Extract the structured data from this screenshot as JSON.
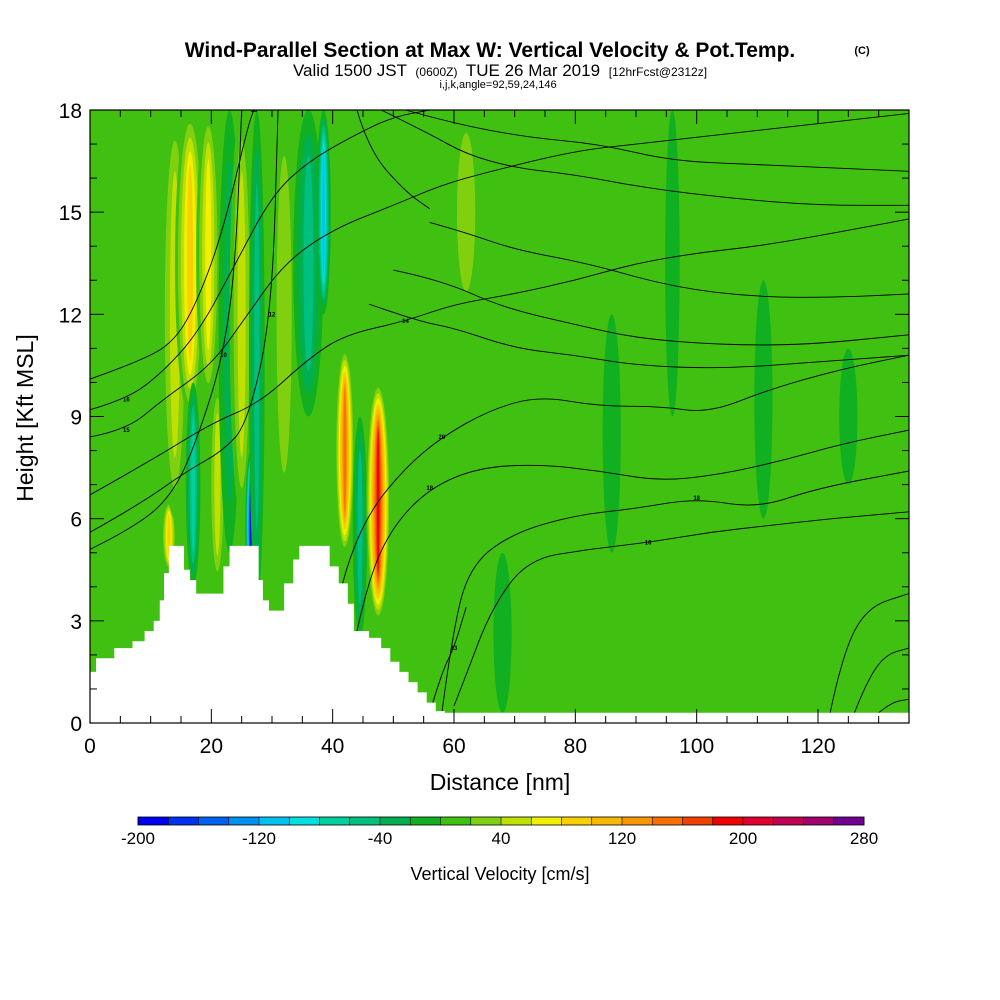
{
  "header": {
    "title": "Wind-Parallel Section at Max W: Vertical Velocity & Pot.Temp.",
    "title_mark": "(C)",
    "valid_prefix": "Valid 1500 JST",
    "valid_zulu": "(0600Z)",
    "valid_date": "TUE 26 Mar 2019",
    "forecast": "[12hrFcst@2312z]",
    "indices": "i,j,k,angle=92,59,24,146"
  },
  "chart_data": {
    "type": "heatmap",
    "xlabel": "Distance [nm]",
    "ylabel": "Height [Kft MSL]",
    "xlim": [
      0,
      135
    ],
    "ylim": [
      0,
      18
    ],
    "x_ticks": [
      0,
      20,
      40,
      60,
      80,
      100,
      120
    ],
    "x_tick_labels": [
      "0",
      "20",
      "40",
      "60",
      "80",
      "100",
      "120"
    ],
    "y_ticks": [
      0,
      3,
      6,
      9,
      12,
      15,
      18
    ],
    "y_tick_labels": [
      "0",
      "3",
      "6",
      "9",
      "12",
      "15",
      "18"
    ],
    "background_value": 0,
    "terrain": [
      {
        "x": 0,
        "h": 1.5
      },
      {
        "x": 1,
        "h": 1.9
      },
      {
        "x": 4,
        "h": 2.2
      },
      {
        "x": 7,
        "h": 2.4
      },
      {
        "x": 9,
        "h": 2.7
      },
      {
        "x": 10.5,
        "h": 3.0
      },
      {
        "x": 11.5,
        "h": 3.6
      },
      {
        "x": 12.2,
        "h": 4.4
      },
      {
        "x": 13,
        "h": 5.2
      },
      {
        "x": 15,
        "h": 5.2
      },
      {
        "x": 15.5,
        "h": 4.5
      },
      {
        "x": 16.5,
        "h": 4.2
      },
      {
        "x": 17.5,
        "h": 3.8
      },
      {
        "x": 21,
        "h": 3.8
      },
      {
        "x": 22,
        "h": 4.6
      },
      {
        "x": 23,
        "h": 5.2
      },
      {
        "x": 27,
        "h": 5.2
      },
      {
        "x": 27.8,
        "h": 4.2
      },
      {
        "x": 28.5,
        "h": 3.6
      },
      {
        "x": 29.5,
        "h": 3.3
      },
      {
        "x": 31,
        "h": 3.3
      },
      {
        "x": 32,
        "h": 4.1
      },
      {
        "x": 33.5,
        "h": 4.8
      },
      {
        "x": 34.5,
        "h": 5.2
      },
      {
        "x": 38,
        "h": 5.2
      },
      {
        "x": 39.5,
        "h": 4.6
      },
      {
        "x": 41,
        "h": 4.1
      },
      {
        "x": 42.5,
        "h": 3.5
      },
      {
        "x": 43.5,
        "h": 2.7
      },
      {
        "x": 46,
        "h": 2.5
      },
      {
        "x": 48,
        "h": 2.2
      },
      {
        "x": 49.5,
        "h": 1.8
      },
      {
        "x": 51,
        "h": 1.5
      },
      {
        "x": 52.5,
        "h": 1.2
      },
      {
        "x": 54,
        "h": 0.9
      },
      {
        "x": 55.5,
        "h": 0.6
      },
      {
        "x": 57,
        "h": 0.35
      },
      {
        "x": 58.5,
        "h": 0.3
      },
      {
        "x": 135,
        "h": 0.3
      }
    ],
    "velocity_features": [
      {
        "x": 6,
        "ybot": 0,
        "ytop": 18,
        "w": 3,
        "v": 30
      },
      {
        "x": 13,
        "ybot": 4.5,
        "ytop": 6.5,
        "w": 1.2,
        "v": 100
      },
      {
        "x": 14,
        "ybot": 6,
        "ytop": 18,
        "w": 2.5,
        "v": 60
      },
      {
        "x": 16.5,
        "ybot": 9,
        "ytop": 18,
        "w": 2.5,
        "v": 100
      },
      {
        "x": 17,
        "ybot": 4,
        "ytop": 10,
        "w": 1.2,
        "v": -80
      },
      {
        "x": 19.5,
        "ybot": 9.5,
        "ytop": 18,
        "w": 2,
        "v": 80
      },
      {
        "x": 21,
        "ybot": 4,
        "ytop": 10,
        "w": 1.5,
        "v": 60
      },
      {
        "x": 23,
        "ybot": 5,
        "ytop": 18,
        "w": 1.8,
        "v": -50
      },
      {
        "x": 25,
        "ybot": 6,
        "ytop": 18,
        "w": 2,
        "v": 70
      },
      {
        "x": 26.5,
        "ybot": 3.8,
        "ytop": 8,
        "w": 0.9,
        "v": -200
      },
      {
        "x": 27.5,
        "ybot": 3.5,
        "ytop": 18,
        "w": 1.3,
        "v": -60
      },
      {
        "x": 32,
        "ybot": 6,
        "ytop": 18,
        "w": 2.5,
        "v": 40
      },
      {
        "x": 36,
        "ybot": 9,
        "ytop": 18,
        "w": 2.5,
        "v": -60
      },
      {
        "x": 38.5,
        "ybot": 12,
        "ytop": 18,
        "w": 1.2,
        "v": -130
      },
      {
        "x": 42,
        "ybot": 5,
        "ytop": 11,
        "w": 1.6,
        "v": 170
      },
      {
        "x": 44.5,
        "ybot": 2.5,
        "ytop": 9,
        "w": 1.2,
        "v": -70
      },
      {
        "x": 47.5,
        "ybot": 3,
        "ytop": 10,
        "w": 2,
        "v": 200
      },
      {
        "x": 52,
        "ybot": 9,
        "ytop": 18,
        "w": 3,
        "v": 30
      },
      {
        "x": 62,
        "ybot": 12,
        "ytop": 18,
        "w": 3,
        "v": 40
      },
      {
        "x": 68,
        "ybot": 0.3,
        "ytop": 5,
        "w": 1.5,
        "v": -30
      },
      {
        "x": 72,
        "ybot": 8,
        "ytop": 12,
        "w": 2,
        "v": 25
      },
      {
        "x": 77,
        "ybot": 14,
        "ytop": 18,
        "w": 3,
        "v": 30
      },
      {
        "x": 86,
        "ybot": 5,
        "ytop": 12,
        "w": 1.5,
        "v": -30
      },
      {
        "x": 90,
        "ybot": 6,
        "ytop": 17,
        "w": 2,
        "v": 25
      },
      {
        "x": 96,
        "ybot": 9,
        "ytop": 18,
        "w": 1.2,
        "v": -30
      },
      {
        "x": 99,
        "ybot": 0.3,
        "ytop": 5,
        "w": 1.5,
        "v": 30
      },
      {
        "x": 106,
        "ybot": 12,
        "ytop": 18,
        "w": 2,
        "v": 25
      },
      {
        "x": 111,
        "ybot": 6,
        "ytop": 13,
        "w": 1.5,
        "v": -30
      },
      {
        "x": 116,
        "ybot": 0.3,
        "ytop": 4,
        "w": 1.2,
        "v": 30
      },
      {
        "x": 125,
        "ybot": 7,
        "ytop": 11,
        "w": 1.5,
        "v": -30
      },
      {
        "x": 131,
        "ybot": 10,
        "ytop": 12.5,
        "w": 1.5,
        "v": 20
      }
    ],
    "theta_contours": [
      {
        "label": "10",
        "label_x": 22,
        "points": [
          [
            0,
            5.1
          ],
          [
            8,
            5.8
          ],
          [
            14,
            6.8
          ],
          [
            18,
            8.5
          ],
          [
            22,
            10.8
          ],
          [
            24,
            13.5
          ],
          [
            25,
            18
          ]
        ]
      },
      {
        "label": "12",
        "label_x": 30,
        "points": [
          [
            0,
            5.6
          ],
          [
            8,
            6.4
          ],
          [
            16,
            7.4
          ],
          [
            22,
            8
          ],
          [
            26,
            8.8
          ],
          [
            30,
            12
          ],
          [
            31,
            18
          ]
        ]
      },
      {
        "label": "14",
        "label_x": 52,
        "points": [
          [
            0,
            6.7
          ],
          [
            10,
            7.7
          ],
          [
            20,
            8.8
          ],
          [
            28,
            9.4
          ],
          [
            36,
            10.7
          ],
          [
            42,
            11.4
          ],
          [
            52,
            11.8
          ],
          [
            60,
            12.3
          ],
          [
            70,
            12.6
          ],
          [
            80,
            13
          ],
          [
            90,
            13.5
          ],
          [
            100,
            13.8
          ],
          [
            110,
            14
          ],
          [
            120,
            14.3
          ],
          [
            135,
            14.8
          ]
        ]
      },
      {
        "label": "15",
        "label_x": 6,
        "points": [
          [
            0,
            8.4
          ],
          [
            6,
            8.6
          ],
          [
            12,
            9.5
          ],
          [
            20,
            10.5
          ],
          [
            26,
            12
          ],
          [
            32,
            13.5
          ],
          [
            40,
            14.5
          ],
          [
            50,
            15.2
          ],
          [
            58,
            15.8
          ],
          [
            66,
            16.2
          ],
          [
            80,
            16.8
          ],
          [
            90,
            17
          ],
          [
            100,
            17.2
          ],
          [
            120,
            17.6
          ],
          [
            135,
            17.9
          ]
        ]
      },
      {
        "label": "16",
        "label_x": 6,
        "points": [
          [
            0,
            9.2
          ],
          [
            6,
            9.5
          ],
          [
            12,
            10.3
          ],
          [
            18,
            11.5
          ],
          [
            24,
            13.5
          ],
          [
            30,
            15.5
          ],
          [
            36,
            16.5
          ],
          [
            44,
            17.3
          ],
          [
            50,
            17.8
          ],
          [
            56,
            18
          ]
        ]
      },
      {
        "label": "18",
        "label_x": 61,
        "points": [
          [
            0,
            10.1
          ],
          [
            8,
            10.6
          ],
          [
            14,
            11.2
          ],
          [
            18,
            12.5
          ],
          [
            22,
            14.5
          ],
          [
            26,
            17.5
          ],
          [
            27,
            18
          ]
        ]
      },
      {
        "label": "20",
        "label_x": 59,
        "points": [
          [
            38,
            1
          ],
          [
            40,
            2.7
          ],
          [
            42,
            4.5
          ],
          [
            46,
            6.2
          ],
          [
            52,
            7.5
          ],
          [
            58,
            8.4
          ],
          [
            66,
            9.2
          ],
          [
            74,
            9.6
          ],
          [
            84,
            9.3
          ],
          [
            94,
            9.3
          ],
          [
            102,
            9.1
          ],
          [
            112,
            9.8
          ],
          [
            124,
            10.4
          ],
          [
            135,
            10.8
          ]
        ]
      },
      {
        "label": "18",
        "label_x": 60,
        "points": [
          [
            44,
            2.7
          ],
          [
            46,
            4.3
          ],
          [
            50,
            5.8
          ],
          [
            56,
            6.9
          ],
          [
            64,
            7.5
          ],
          [
            74,
            7.6
          ],
          [
            84,
            7.4
          ],
          [
            94,
            7.1
          ],
          [
            104,
            7.3
          ],
          [
            114,
            7.7
          ],
          [
            124,
            8.2
          ],
          [
            135,
            8.6
          ]
        ]
      },
      {
        "label": "18",
        "label_x": 103,
        "points": [
          [
            58,
            0.3
          ],
          [
            60,
            3
          ],
          [
            63,
            4.7
          ],
          [
            70,
            5.6
          ],
          [
            80,
            6.1
          ],
          [
            90,
            6.3
          ],
          [
            100,
            6.6
          ],
          [
            110,
            6.3
          ],
          [
            120,
            6.9
          ],
          [
            135,
            7.4
          ]
        ]
      },
      {
        "label": "16",
        "label_x": 92,
        "points": [
          [
            60,
            0.5
          ],
          [
            62,
            1.4
          ],
          [
            66,
            3.3
          ],
          [
            72,
            4.8
          ],
          [
            82,
            5.1
          ],
          [
            92,
            5.3
          ],
          [
            102,
            5.6
          ],
          [
            112,
            5.8
          ],
          [
            122,
            6
          ],
          [
            135,
            6.2
          ]
        ]
      },
      {
        "label": "13",
        "label_x": 60,
        "points": [
          [
            56,
            0.3
          ],
          [
            58,
            1.5
          ],
          [
            60,
            2.2
          ],
          [
            62,
            3.4
          ]
        ]
      },
      {
        "label": "",
        "label_x": 0,
        "points": [
          [
            122,
            0.3
          ],
          [
            124,
            2
          ],
          [
            128,
            3.4
          ],
          [
            135,
            3.8
          ]
        ]
      },
      {
        "label": "",
        "label_x": 0,
        "points": [
          [
            126,
            0.3
          ],
          [
            128,
            1.2
          ],
          [
            131,
            2
          ],
          [
            135,
            2.2
          ]
        ]
      },
      {
        "label": "",
        "label_x": 0,
        "points": [
          [
            130,
            0.3
          ],
          [
            132,
            0.6
          ],
          [
            135,
            0.7
          ]
        ]
      },
      {
        "label": "",
        "label_x": 0,
        "points": [
          [
            44,
            18
          ],
          [
            46,
            16.8
          ],
          [
            52,
            15.6
          ],
          [
            56,
            15.1
          ]
        ]
      },
      {
        "label": "",
        "label_x": 0,
        "points": [
          [
            48,
            18
          ],
          [
            56,
            17.3
          ],
          [
            62,
            16.7
          ],
          [
            70,
            16.3
          ],
          [
            80,
            16.1
          ],
          [
            92,
            15.7
          ],
          [
            106,
            15.4
          ],
          [
            120,
            15.2
          ],
          [
            135,
            15.2
          ]
        ]
      },
      {
        "label": "",
        "label_x": 0,
        "points": [
          [
            52,
            18
          ],
          [
            60,
            17.6
          ],
          [
            72,
            17.2
          ],
          [
            84,
            17
          ],
          [
            96,
            16.5
          ],
          [
            110,
            16.4
          ],
          [
            135,
            16.2
          ]
        ]
      },
      {
        "label": "",
        "label_x": 0,
        "points": [
          [
            56,
            14.7
          ],
          [
            62,
            14.4
          ],
          [
            70,
            13.9
          ],
          [
            82,
            13.5
          ],
          [
            96,
            12.8
          ],
          [
            110,
            12.5
          ],
          [
            124,
            12.5
          ],
          [
            135,
            12.6
          ]
        ]
      },
      {
        "label": "",
        "label_x": 0,
        "points": [
          [
            50,
            13.3
          ],
          [
            58,
            13
          ],
          [
            68,
            12.2
          ],
          [
            80,
            11.7
          ],
          [
            90,
            11.3
          ],
          [
            104,
            11.1
          ],
          [
            118,
            11.1
          ],
          [
            135,
            11.4
          ]
        ]
      },
      {
        "label": "",
        "label_x": 0,
        "points": [
          [
            46,
            12.3
          ],
          [
            54,
            11.8
          ],
          [
            60,
            11.6
          ],
          [
            70,
            11
          ],
          [
            80,
            10.8
          ],
          [
            90,
            10.5
          ],
          [
            104,
            10.4
          ],
          [
            120,
            10.6
          ],
          [
            135,
            10.8
          ]
        ]
      }
    ],
    "colorbar": {
      "title": "Vertical Velocity [cm/s]",
      "min": -200,
      "max": 280,
      "step": 20,
      "tick_values": [
        -200,
        -120,
        -40,
        40,
        120,
        200,
        280
      ],
      "tick_labels": [
        "-200",
        "-120",
        "-40",
        "40",
        "120",
        "200",
        "280"
      ],
      "colors": [
        "#0000f0",
        "#0030f0",
        "#0060f0",
        "#0090f0",
        "#00c0f0",
        "#00e0e0",
        "#00d0a0",
        "#00c080",
        "#00b050",
        "#10b020",
        "#40c010",
        "#80d010",
        "#c0e000",
        "#f0f000",
        "#f8d000",
        "#f8b800",
        "#f89800",
        "#f87000",
        "#f04000",
        "#f00000",
        "#e00030",
        "#c00050",
        "#a00070",
        "#700090"
      ]
    }
  }
}
